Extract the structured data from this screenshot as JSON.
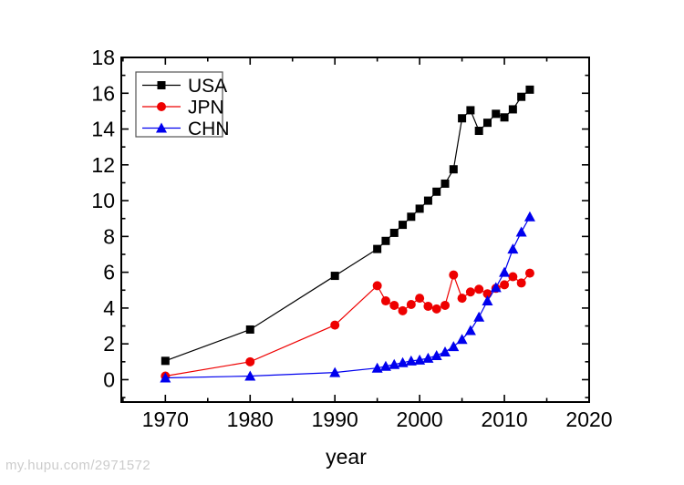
{
  "watermark": {
    "text": "my.hupu.com/2971572",
    "color": "#cccccc"
  },
  "chart_data": {
    "type": "line",
    "title": "",
    "xlabel": "year",
    "ylabel": "",
    "grid": false,
    "legend_position": "top-left",
    "x_axis": {
      "min": 1964.8,
      "max": 2020,
      "major_ticks": [
        1970,
        1980,
        1990,
        2000,
        2010,
        2020
      ],
      "minor_ticks": [
        1965,
        1975,
        1985,
        1995,
        2005,
        2015
      ]
    },
    "y_axis": {
      "min": -1.25,
      "max": 18,
      "major_ticks": [
        0,
        2,
        4,
        6,
        8,
        10,
        12,
        14,
        16,
        18
      ],
      "minor_ticks": [
        -1,
        1,
        3,
        5,
        7,
        9,
        11,
        13,
        15,
        17
      ]
    },
    "series": [
      {
        "name": "USA",
        "color": "#000000",
        "marker": "square",
        "x": [
          1970,
          1980,
          1990,
          1995,
          1996,
          1997,
          1998,
          1999,
          2000,
          2001,
          2002,
          2003,
          2004,
          2005,
          2006,
          2007,
          2008,
          2009,
          2010,
          2011,
          2012,
          2013
        ],
        "y": [
          1.05,
          2.8,
          5.8,
          7.3,
          7.75,
          8.2,
          8.65,
          9.1,
          9.55,
          10.0,
          10.5,
          10.95,
          11.75,
          14.6,
          15.05,
          13.9,
          14.35,
          14.85,
          14.65,
          15.1,
          15.8,
          16.2
        ]
      },
      {
        "name": "JPN",
        "color": "#ee0000",
        "marker": "circle",
        "x": [
          1970,
          1980,
          1990,
          1995,
          1996,
          1997,
          1998,
          1999,
          2000,
          2001,
          2002,
          2003,
          2004,
          2005,
          2006,
          2007,
          2008,
          2009,
          2010,
          2011,
          2012,
          2013
        ],
        "y": [
          0.2,
          1.0,
          3.05,
          5.25,
          4.4,
          4.15,
          3.85,
          4.2,
          4.55,
          4.1,
          3.95,
          4.15,
          5.85,
          4.55,
          4.9,
          5.05,
          4.8,
          5.1,
          5.3,
          5.75,
          5.4,
          5.95
        ]
      },
      {
        "name": "CHN",
        "color": "#0000ee",
        "marker": "triangle-up",
        "x": [
          1970,
          1980,
          1990,
          1995,
          1996,
          1997,
          1998,
          1999,
          2000,
          2001,
          2002,
          2003,
          2004,
          2005,
          2006,
          2007,
          2008,
          2009,
          2010,
          2011,
          2012,
          2013
        ],
        "y": [
          0.1,
          0.2,
          0.4,
          0.65,
          0.75,
          0.85,
          0.95,
          1.05,
          1.1,
          1.2,
          1.35,
          1.55,
          1.85,
          2.25,
          2.75,
          3.5,
          4.4,
          5.15,
          6.0,
          7.3,
          8.25,
          9.1
        ]
      }
    ]
  }
}
